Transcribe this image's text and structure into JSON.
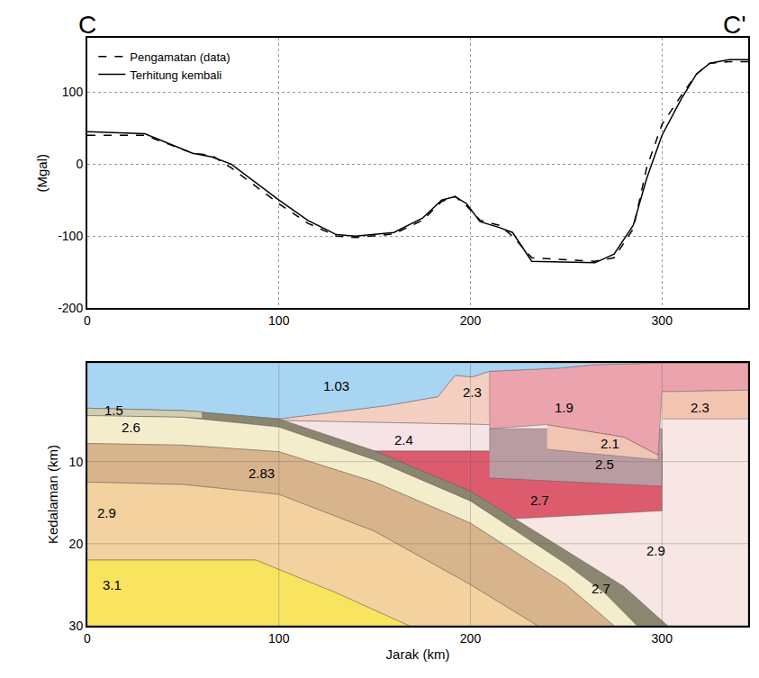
{
  "chart_data": [
    {
      "type": "line",
      "profile_start": "C",
      "profile_end": "C'",
      "ylabel": "(Mgal)",
      "xlim": [
        0,
        345
      ],
      "ylim": [
        -200,
        175
      ],
      "xticks": [
        0,
        100,
        200,
        300
      ],
      "yticks": [
        -200,
        -100,
        0,
        100
      ],
      "grid": true,
      "legend": "upper left",
      "x": [
        0,
        30,
        55,
        65,
        75,
        90,
        100,
        115,
        130,
        140,
        160,
        175,
        185,
        192,
        198,
        205,
        215,
        222,
        232,
        265,
        275,
        285,
        292,
        300,
        310,
        318,
        325,
        335,
        345
      ],
      "series": [
        {
          "name": "Pengamatan (data)",
          "color": "#000000",
          "line_style": "dashed",
          "values": [
            40,
            40,
            15,
            12,
            -5,
            -35,
            -55,
            -82,
            -100,
            -102,
            -97,
            -78,
            -52,
            -45,
            -58,
            -78,
            -85,
            -100,
            -130,
            -135,
            -130,
            -90,
            -5,
            55,
            95,
            125,
            140,
            142,
            142
          ]
        },
        {
          "name": "Terhitung kembali",
          "color": "#000000",
          "line_style": "solid",
          "values": [
            45,
            42,
            15,
            10,
            0,
            -30,
            -50,
            -78,
            -98,
            -100,
            -95,
            -75,
            -50,
            -45,
            -55,
            -80,
            -88,
            -95,
            -135,
            -137,
            -125,
            -85,
            -20,
            40,
            90,
            125,
            140,
            145,
            145
          ]
        }
      ]
    },
    {
      "type": "polygon",
      "xlabel": "Jarak (km)",
      "ylabel": "Kedalaman (km)",
      "xlim": [
        0,
        345
      ],
      "ylim": [
        30,
        -2
      ],
      "xticks": [
        0,
        100,
        200,
        300
      ],
      "yticks": [
        10,
        20,
        30
      ],
      "grid": true,
      "bodies": [
        {
          "density": 2.9,
          "color": "#f7e6e3",
          "x": [
            0,
            345,
            345,
            0
          ],
          "y": [
            -2,
            -2,
            30,
            30
          ],
          "label_x": 297,
          "label_y": 20.8
        },
        {
          "density": 2.7,
          "color": "#dc5c6e",
          "x": [
            125,
            300,
            300,
            220,
            160
          ],
          "y": [
            8.7,
            8.7,
            16,
            17,
            12
          ],
          "label_x": 236,
          "label_y": 14.7
        },
        {
          "density": 2.5,
          "color": "#b99ca2",
          "x": [
            210,
            300,
            300,
            210
          ],
          "y": [
            6,
            6,
            13,
            12
          ],
          "label_x": 270,
          "label_y": 10.3
        },
        {
          "density": 2.1,
          "color": "#f0c6b3",
          "x": [
            240,
            280,
            298,
            298,
            240
          ],
          "y": [
            5.5,
            7,
            9.2,
            9.8,
            8.5
          ],
          "label_x": 273,
          "label_y": 7.8
        },
        {
          "density": 1.9,
          "color": "#eba3ad",
          "x": [
            210,
            229,
            247,
            265,
            300,
            345,
            345,
            300,
            298,
            280,
            240,
            210
          ],
          "y": [
            -1,
            -1.2,
            -1.4,
            -1.8,
            -2,
            -2,
            1.3,
            1.5,
            9.2,
            7,
            5.5,
            6
          ],
          "label_x": 249,
          "label_y": 3.4
        },
        {
          "density": 2.3,
          "color": "#f2c5b1",
          "x": [
            300,
            345,
            345,
            300
          ],
          "y": [
            1.5,
            1.3,
            4.8,
            4.8
          ],
          "label_x": 320,
          "label_y": 3.4
        },
        {
          "density": 2.3,
          "color": "#f4cfc1",
          "x": [
            100,
            156,
            183,
            192,
            201,
            210,
            210,
            150,
            100
          ],
          "y": [
            4.8,
            3.2,
            2.1,
            -0.5,
            -0.3,
            -1,
            5.5,
            5.2,
            5
          ],
          "label_x": 201,
          "label_y": 1.5
        },
        {
          "density": 2.4,
          "color": "#f6e3e6",
          "x": [
            100,
            150,
            210,
            210,
            140,
            120
          ],
          "y": [
            5,
            5.2,
            5.5,
            8.7,
            8.7,
            7
          ],
          "label_x": 165,
          "label_y": 7.3
        },
        {
          "density": 1.03,
          "color": "#a8d5f1",
          "x": [
            0,
            345,
            300,
            265,
            247,
            229,
            210,
            201,
            192,
            183,
            156,
            100,
            50,
            0
          ],
          "y": [
            -2,
            -2,
            -2,
            -1.8,
            -1.4,
            -1.2,
            -1,
            -0.3,
            -0.5,
            2.1,
            3.2,
            4.8,
            3.8,
            3.5
          ],
          "label_x": 130,
          "label_y": 0.8
        },
        {
          "density": 2.7,
          "color": "#8a8670",
          "x": [
            0,
            50,
            100,
            150,
            200,
            250,
            280,
            303,
            287,
            270,
            250,
            200,
            150,
            100,
            50,
            0
          ],
          "y": [
            3.5,
            3.8,
            4.8,
            8.7,
            13.6,
            20.8,
            25.2,
            30,
            30,
            26,
            22.5,
            14.8,
            9.8,
            5.8,
            4.6,
            4.4
          ],
          "label_x": 268,
          "label_y": 25.4
        },
        {
          "density": 1.5,
          "color": "#d2cdb2",
          "x": [
            0,
            50,
            60,
            60,
            50,
            0
          ],
          "y": [
            3.5,
            3.8,
            3.95,
            4.75,
            4.6,
            4.4
          ],
          "label_x": 14,
          "label_y": 3.7
        },
        {
          "density": 2.6,
          "color": "#f3edcc",
          "x": [
            0,
            50,
            100,
            150,
            200,
            250,
            270,
            287,
            275,
            250,
            200,
            150,
            100,
            50,
            0
          ],
          "y": [
            4.4,
            4.6,
            5.8,
            9.8,
            14.8,
            22.5,
            26,
            30,
            30,
            25,
            17.5,
            12.5,
            8.8,
            8,
            7.8
          ],
          "label_x": 23,
          "label_y": 5.8
        },
        {
          "density": 2.83,
          "color": "#d8b48c",
          "x": [
            0,
            50,
            100,
            150,
            200,
            250,
            275,
            235,
            200,
            150,
            100,
            50,
            0
          ],
          "y": [
            7.8,
            8,
            8.8,
            12.5,
            17.5,
            25,
            30,
            30,
            25,
            18.5,
            14,
            12.8,
            12.5
          ],
          "label_x": 91,
          "label_y": 11.4
        },
        {
          "density": 2.9,
          "color": "#f3d2a0",
          "x": [
            0,
            50,
            100,
            150,
            200,
            235,
            168,
            130,
            88,
            0
          ],
          "y": [
            12.5,
            12.8,
            14,
            18.5,
            25,
            30,
            30,
            26,
            22,
            22
          ],
          "label_x": 10,
          "label_y": 16.2
        },
        {
          "density": 3.1,
          "color": "#f8e45e",
          "x": [
            0,
            88,
            130,
            168,
            0
          ],
          "y": [
            22,
            22,
            26,
            30,
            30
          ],
          "label_x": 13,
          "label_y": 25
        }
      ]
    }
  ]
}
